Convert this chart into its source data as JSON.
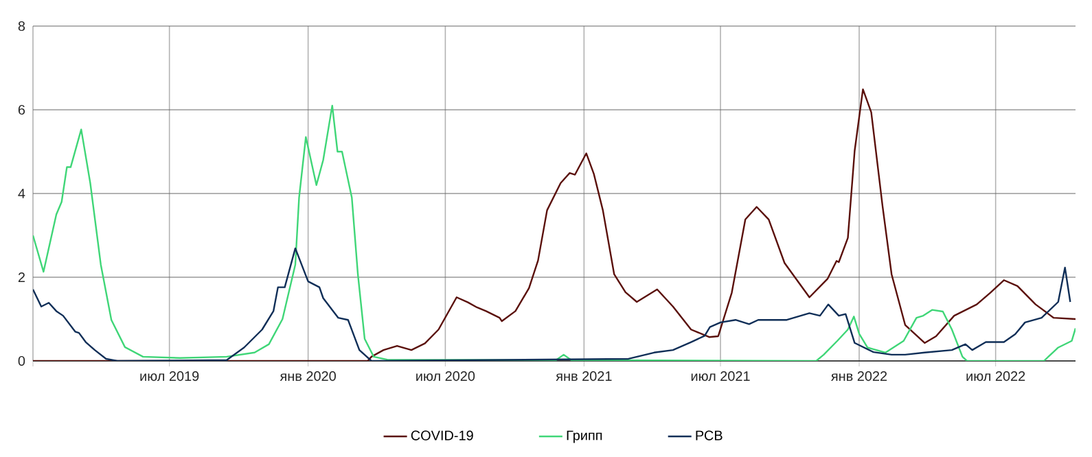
{
  "chart_data": {
    "type": "line",
    "legend": "bottom",
    "grid": true,
    "xlim": [
      "2019-01-01",
      "2022-10-15"
    ],
    "ylim": [
      0,
      8
    ],
    "yticks": [
      0,
      2,
      4,
      6,
      8
    ],
    "xticks": [
      {
        "value": "2019-01-01",
        "label": null
      },
      {
        "value": "2019-07-01",
        "label": "июл 2019"
      },
      {
        "value": "2020-01-01",
        "label": "янв 2020"
      },
      {
        "value": "2020-07-01",
        "label": "июл 2020"
      },
      {
        "value": "2021-01-01",
        "label": "янв 2021"
      },
      {
        "value": "2021-07-01",
        "label": "июл 2021"
      },
      {
        "value": "2022-01-01",
        "label": "янв 2022"
      },
      {
        "value": "2022-07-01",
        "label": "июл 2022"
      }
    ],
    "series": [
      {
        "name": "COVID-19",
        "color": "#5a0f0a",
        "x": [
          "2019-01-01",
          "2020-03-20",
          "2020-03-25",
          "2020-04-10",
          "2020-04-28",
          "2020-05-17",
          "2020-06-04",
          "2020-06-22",
          "2020-07-16",
          "2020-07-31",
          "2020-08-12",
          "2020-08-24",
          "2020-09-11",
          "2020-09-14",
          "2020-10-02",
          "2020-10-20",
          "2020-11-01",
          "2020-11-13",
          "2020-12-01",
          "2020-12-13",
          "2020-12-20",
          "2021-01-04",
          "2021-01-14",
          "2021-01-26",
          "2021-02-10",
          "2021-02-25",
          "2021-03-12",
          "2021-04-08",
          "2021-04-29",
          "2021-05-23",
          "2021-06-16",
          "2021-06-28",
          "2021-07-16",
          "2021-08-03",
          "2021-08-18",
          "2021-09-03",
          "2021-09-24",
          "2021-10-27",
          "2021-11-20",
          "2021-12-02",
          "2021-12-05",
          "2021-12-17",
          "2021-12-26",
          "2022-01-06",
          "2022-01-17",
          "2022-02-01",
          "2022-02-13",
          "2022-03-03",
          "2022-03-29",
          "2022-04-13",
          "2022-05-07",
          "2022-06-06",
          "2022-06-24",
          "2022-07-12",
          "2022-07-30",
          "2022-08-23",
          "2022-09-16",
          "2022-10-15"
        ],
        "values": [
          0,
          0,
          0.1,
          0.26,
          0.36,
          0.26,
          0.42,
          0.75,
          1.52,
          1.4,
          1.28,
          1.19,
          1.03,
          0.95,
          1.19,
          1.74,
          2.4,
          3.6,
          4.25,
          4.49,
          4.45,
          4.96,
          4.47,
          3.6,
          2.07,
          1.64,
          1.41,
          1.71,
          1.3,
          0.75,
          0.57,
          0.59,
          1.63,
          3.38,
          3.68,
          3.38,
          2.34,
          1.52,
          1.96,
          2.39,
          2.36,
          2.94,
          5.02,
          6.49,
          5.94,
          3.7,
          2.07,
          0.86,
          0.43,
          0.59,
          1.08,
          1.35,
          1.63,
          1.93,
          1.79,
          1.35,
          1.03,
          1.0
        ]
      },
      {
        "name": "Грипп",
        "color": "#3fd677",
        "x": [
          "2019-01-01",
          "2019-01-15",
          "2019-02-01",
          "2019-02-08",
          "2019-02-15",
          "2019-02-20",
          "2019-03-06",
          "2019-03-18",
          "2019-04-01",
          "2019-04-15",
          "2019-05-03",
          "2019-05-27",
          "2019-07-15",
          "2019-09-15",
          "2019-10-22",
          "2019-11-10",
          "2019-11-28",
          "2019-12-15",
          "2019-12-20",
          "2019-12-29",
          "2020-01-12",
          "2020-01-21",
          "2020-02-02",
          "2020-02-09",
          "2020-02-15",
          "2020-02-28",
          "2020-03-07",
          "2020-03-16",
          "2020-03-28",
          "2020-04-15",
          "2020-11-25",
          "2020-12-05",
          "2020-12-15",
          "2021-11-05",
          "2021-11-15",
          "2021-12-03",
          "2021-12-17",
          "2021-12-25",
          "2022-01-01",
          "2022-01-12",
          "2022-02-05",
          "2022-03-01",
          "2022-03-18",
          "2022-03-27",
          "2022-04-08",
          "2022-04-22",
          "2022-05-04",
          "2022-05-18",
          "2022-05-24",
          "2022-09-03",
          "2022-09-22",
          "2022-10-10",
          "2022-10-15"
        ],
        "values": [
          3.0,
          2.13,
          3.5,
          3.8,
          4.63,
          4.63,
          5.53,
          4.25,
          2.3,
          0.98,
          0.33,
          0.1,
          0.07,
          0.1,
          0.2,
          0.4,
          1.0,
          2.3,
          3.9,
          5.35,
          4.2,
          4.8,
          6.1,
          5.0,
          5.0,
          3.9,
          2.07,
          0.53,
          0.1,
          0.03,
          0.02,
          0.15,
          0.02,
          0,
          0.15,
          0.48,
          0.75,
          1.06,
          0.65,
          0.32,
          0.2,
          0.48,
          1.03,
          1.08,
          1.22,
          1.18,
          0.75,
          0.1,
          0,
          0,
          0.32,
          0.48,
          0.78
        ]
      },
      {
        "name": "РСВ",
        "color": "#0f2e57",
        "x": [
          "2019-01-01",
          "2019-01-12",
          "2019-01-22",
          "2019-02-01",
          "2019-02-10",
          "2019-02-26",
          "2019-03-03",
          "2019-03-12",
          "2019-03-24",
          "2019-04-08",
          "2019-04-23",
          "2019-09-15",
          "2019-10-08",
          "2019-11-01",
          "2019-11-16",
          "2019-11-22",
          "2019-12-01",
          "2019-12-15",
          "2020-01-01",
          "2020-01-16",
          "2020-01-21",
          "2020-02-10",
          "2020-02-23",
          "2020-03-09",
          "2020-03-25",
          "2021-03-01",
          "2021-04-04",
          "2021-04-29",
          "2021-05-23",
          "2021-06-10",
          "2021-06-17",
          "2021-07-01",
          "2021-07-21",
          "2021-08-08",
          "2021-08-20",
          "2021-09-27",
          "2021-10-27",
          "2021-11-10",
          "2021-11-21",
          "2021-12-05",
          "2021-12-14",
          "2021-12-26",
          "2022-01-20",
          "2022-02-13",
          "2022-03-03",
          "2022-03-29",
          "2022-05-04",
          "2022-05-22",
          "2022-05-31",
          "2022-06-18",
          "2022-07-12",
          "2022-07-27",
          "2022-08-09",
          "2022-08-31",
          "2022-09-22",
          "2022-10-01",
          "2022-10-08"
        ],
        "values": [
          1.71,
          1.3,
          1.39,
          1.19,
          1.08,
          0.7,
          0.67,
          0.45,
          0.26,
          0.05,
          0,
          0.02,
          0.32,
          0.75,
          1.19,
          1.76,
          1.76,
          2.69,
          1.9,
          1.76,
          1.5,
          1.03,
          0.98,
          0.26,
          0,
          0.05,
          0.2,
          0.26,
          0.45,
          0.6,
          0.81,
          0.92,
          0.98,
          0.88,
          0.98,
          0.98,
          1.14,
          1.08,
          1.35,
          1.08,
          1.12,
          0.43,
          0.21,
          0.15,
          0.15,
          0.2,
          0.26,
          0.4,
          0.26,
          0.45,
          0.45,
          0.64,
          0.92,
          1.03,
          1.41,
          2.23,
          1.41
        ]
      }
    ]
  }
}
